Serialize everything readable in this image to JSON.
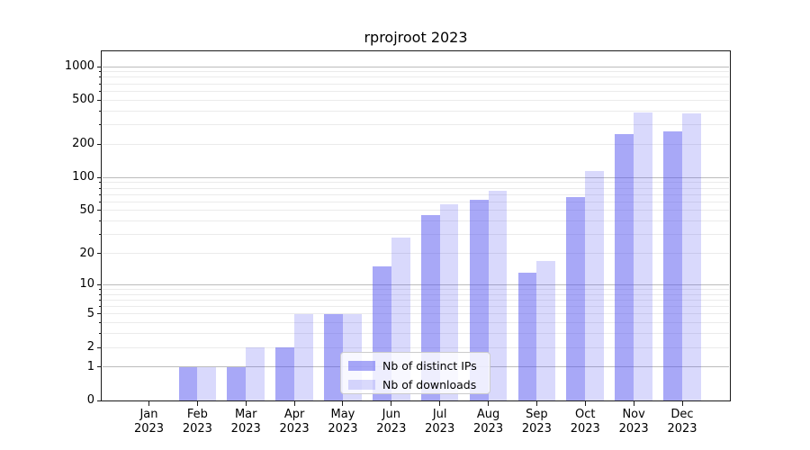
{
  "title": "rprojroot 2023",
  "chart_data": {
    "type": "bar",
    "title": "rprojroot 2023",
    "categories": [
      "Jan 2023",
      "Feb 2023",
      "Mar 2023",
      "Apr 2023",
      "May 2023",
      "Jun 2023",
      "Jul 2023",
      "Aug 2023",
      "Sep 2023",
      "Oct 2023",
      "Nov 2023",
      "Dec 2023"
    ],
    "series": [
      {
        "name": "Nb of distinct IPs",
        "color": "rgba(82,82,240,0.5)",
        "values": [
          0,
          1,
          1,
          2,
          5,
          15,
          45,
          63,
          13,
          66,
          245,
          260
        ]
      },
      {
        "name": "Nb of downloads",
        "color": "rgba(82,82,240,0.22)",
        "values": [
          0,
          1,
          2,
          5,
          5,
          28,
          57,
          76,
          17,
          114,
          388,
          376
        ]
      }
    ],
    "y_ticks": [
      0,
      1,
      2,
      5,
      10,
      20,
      50,
      100,
      200,
      500,
      1000
    ],
    "y_major_gridlines": [
      1,
      10,
      100,
      1000
    ],
    "y_scale": "log1p",
    "ylim": [
      0,
      1375
    ],
    "xlabel": "",
    "ylabel": "",
    "grid": true,
    "legend_position": "inside-bottom-center",
    "colors": {
      "bar_dark": "rgba(82,82,240,0.5)",
      "bar_light": "rgba(82,82,240,0.22)",
      "major_grid": "#bcbcbc",
      "minor_grid": "#ebebeb",
      "spine": "#1a1a1a",
      "text": "#000000",
      "legend_border": "#cccccc",
      "legend_bg": "rgba(255,255,255,0.8)"
    }
  }
}
